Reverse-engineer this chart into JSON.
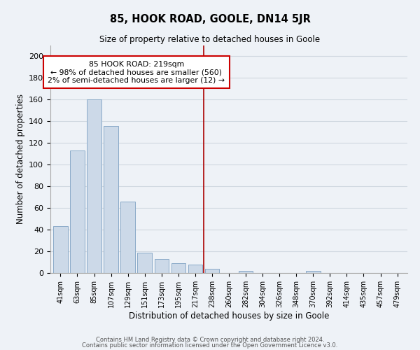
{
  "title": "85, HOOK ROAD, GOOLE, DN14 5JR",
  "subtitle": "Size of property relative to detached houses in Goole",
  "xlabel": "Distribution of detached houses by size in Goole",
  "ylabel": "Number of detached properties",
  "bar_labels": [
    "41sqm",
    "63sqm",
    "85sqm",
    "107sqm",
    "129sqm",
    "151sqm",
    "173sqm",
    "195sqm",
    "217sqm",
    "238sqm",
    "260sqm",
    "282sqm",
    "304sqm",
    "326sqm",
    "348sqm",
    "370sqm",
    "392sqm",
    "414sqm",
    "435sqm",
    "457sqm",
    "479sqm"
  ],
  "bar_values": [
    43,
    113,
    160,
    136,
    66,
    19,
    13,
    9,
    8,
    4,
    0,
    2,
    0,
    0,
    0,
    2,
    0,
    0,
    0,
    0,
    0
  ],
  "bar_color": "#ccd9e8",
  "bar_edge_color": "#8aaac8",
  "grid_color": "#d0d8e0",
  "background_color": "#eef2f7",
  "vline_x": 8.5,
  "vline_color": "#aa0000",
  "annotation_box_text": "85 HOOK ROAD: 219sqm\n← 98% of detached houses are smaller (560)\n2% of semi-detached houses are larger (12) →",
  "annotation_box_fc": "white",
  "annotation_box_ec": "#cc0000",
  "ylim": [
    0,
    210
  ],
  "yticks": [
    0,
    20,
    40,
    60,
    80,
    100,
    120,
    140,
    160,
    180,
    200
  ],
  "footer_line1": "Contains HM Land Registry data © Crown copyright and database right 2024.",
  "footer_line2": "Contains public sector information licensed under the Open Government Licence v3.0."
}
